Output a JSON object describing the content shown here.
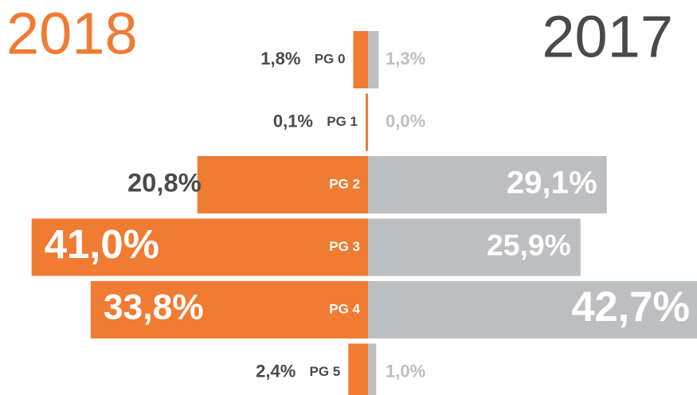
{
  "chart_data": {
    "type": "butterfly-bar",
    "categories": [
      "PG 0",
      "PG 1",
      "PG 2",
      "PG 3",
      "PG 4",
      "PG 5"
    ],
    "series": [
      {
        "name": "2018",
        "color": "#f07b32",
        "values": [
          1.8,
          0.1,
          20.8,
          41.0,
          33.8,
          2.4
        ],
        "value_labels": [
          "1,8%",
          "0,1%",
          "20,8%",
          "41,0%",
          "33,8%",
          "2,4%"
        ]
      },
      {
        "name": "2017",
        "color": "#bdbec1",
        "values": [
          1.3,
          0.0,
          29.1,
          25.9,
          42.7,
          1.0
        ],
        "value_labels": [
          "1,3%",
          "0,0%",
          "29,1%",
          "25,9%",
          "42,7%",
          "1,0%"
        ]
      }
    ]
  }
}
